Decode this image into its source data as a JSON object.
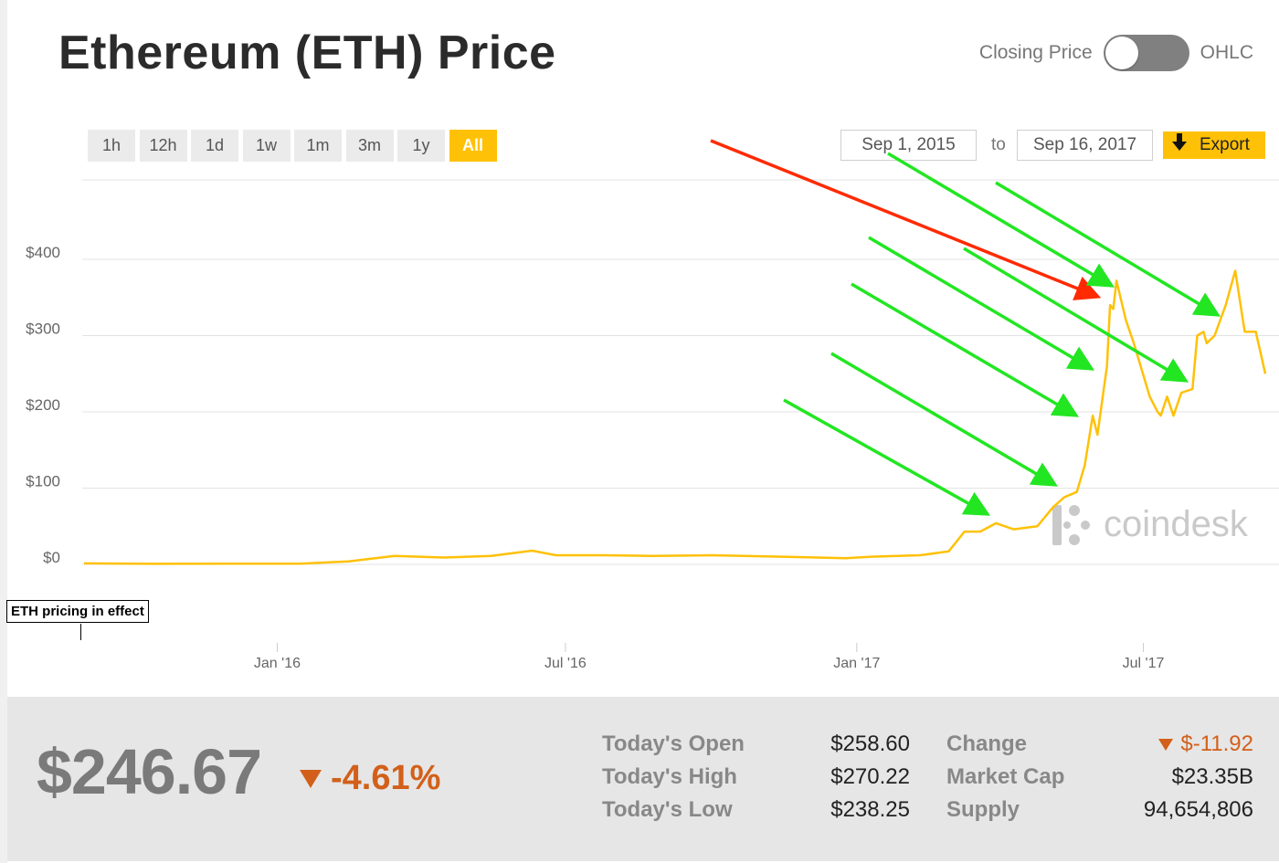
{
  "header": {
    "title": "Ethereum (ETH) Price",
    "toggle_left_label": "Closing Price",
    "toggle_right_label": "OHLC"
  },
  "ranges": [
    "1h",
    "12h",
    "1d",
    "1w",
    "1m",
    "3m",
    "1y",
    "All"
  ],
  "active_range": "All",
  "date_range": {
    "from": "Sep 1, 2015",
    "to_label": "to",
    "to": "Sep 16, 2017"
  },
  "export_label": "Export",
  "watermark": "coindesk",
  "note_label": "ETH pricing in effect",
  "colors": {
    "line": "#ffc107",
    "accent": "#ffc107",
    "negative": "#d2601a",
    "green_arrow": "#22e622",
    "red_arrow": "#ff2a00"
  },
  "chart_data": {
    "type": "line",
    "y_ticks": [
      "$0",
      "$100",
      "$200",
      "$300",
      "$400"
    ],
    "y_tick_values": [
      0,
      100,
      200,
      300,
      400
    ],
    "ylim": [
      0,
      400
    ],
    "xlim": [
      "2015-09-01",
      "2017-09-16"
    ],
    "x_ticks": [
      {
        "label": "Jan '16",
        "date": "2016-01-01"
      },
      {
        "label": "Jul '16",
        "date": "2016-07-01"
      },
      {
        "label": "Jan '17",
        "date": "2017-01-01"
      },
      {
        "label": "Jul '17",
        "date": "2017-07-01"
      }
    ],
    "grid": true,
    "series": [
      {
        "points": [
          [
            "2015-09-01",
            1.3
          ],
          [
            "2015-10-15",
            0.7
          ],
          [
            "2015-12-01",
            0.9
          ],
          [
            "2016-01-15",
            1.0
          ],
          [
            "2016-02-15",
            4
          ],
          [
            "2016-03-15",
            11
          ],
          [
            "2016-04-15",
            9
          ],
          [
            "2016-05-15",
            11
          ],
          [
            "2016-06-10",
            18
          ],
          [
            "2016-06-25",
            12
          ],
          [
            "2016-07-25",
            12
          ],
          [
            "2016-08-25",
            11
          ],
          [
            "2016-10-01",
            12
          ],
          [
            "2016-11-15",
            10
          ],
          [
            "2016-12-25",
            8
          ],
          [
            "2017-01-10",
            10
          ],
          [
            "2017-02-10",
            12
          ],
          [
            "2017-02-28",
            17
          ],
          [
            "2017-03-10",
            43
          ],
          [
            "2017-03-20",
            43
          ],
          [
            "2017-03-30",
            54
          ],
          [
            "2017-04-10",
            46
          ],
          [
            "2017-04-25",
            50
          ],
          [
            "2017-05-05",
            75
          ],
          [
            "2017-05-12",
            88
          ],
          [
            "2017-05-20",
            95
          ],
          [
            "2017-05-25",
            130
          ],
          [
            "2017-05-30",
            195
          ],
          [
            "2017-06-02",
            170
          ],
          [
            "2017-06-06",
            230
          ],
          [
            "2017-06-08",
            260
          ],
          [
            "2017-06-10",
            340
          ],
          [
            "2017-06-12",
            335
          ],
          [
            "2017-06-14",
            372
          ],
          [
            "2017-06-20",
            320
          ],
          [
            "2017-06-25",
            290
          ],
          [
            "2017-07-05",
            220
          ],
          [
            "2017-07-10",
            200
          ],
          [
            "2017-07-12",
            195
          ],
          [
            "2017-07-16",
            220
          ],
          [
            "2017-07-20",
            195
          ],
          [
            "2017-07-25",
            225
          ],
          [
            "2017-08-01",
            230
          ],
          [
            "2017-08-04",
            300
          ],
          [
            "2017-08-08",
            305
          ],
          [
            "2017-08-10",
            290
          ],
          [
            "2017-08-15",
            300
          ],
          [
            "2017-08-22",
            340
          ],
          [
            "2017-08-28",
            385
          ],
          [
            "2017-09-03",
            305
          ],
          [
            "2017-09-10",
            305
          ],
          [
            "2017-09-16",
            250
          ]
        ]
      }
    ]
  },
  "summary": {
    "price": "$246.67",
    "change_pct": "-4.61%",
    "stats": [
      {
        "label": "Today's Open",
        "value": "$258.60"
      },
      {
        "label": "Today's High",
        "value": "$270.22"
      },
      {
        "label": "Today's Low",
        "value": "$238.25"
      },
      {
        "label": "Change",
        "value": "$-11.92"
      },
      {
        "label": "Market Cap",
        "value": "$23.35B"
      },
      {
        "label": "Supply",
        "value": "94,654,806"
      }
    ]
  }
}
